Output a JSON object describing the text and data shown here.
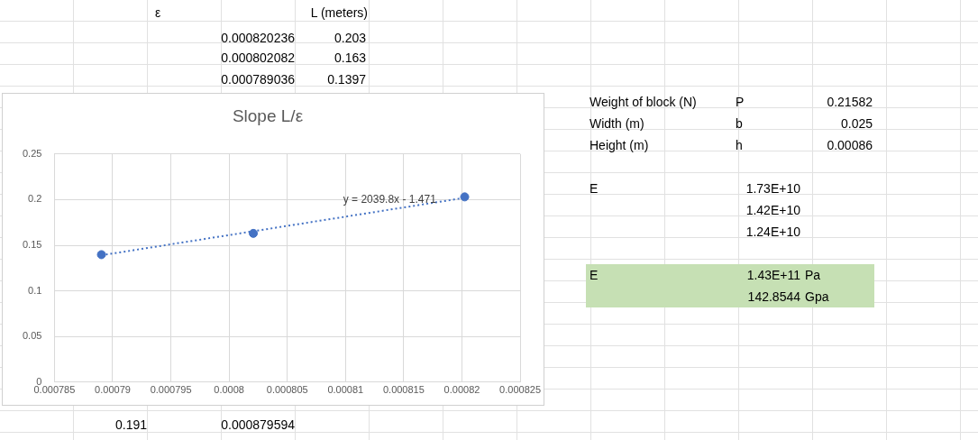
{
  "chart_data": [
    {
      "type": "scatter",
      "title": "Slope L/ε",
      "series": [
        {
          "type": "scatter",
          "color": "#4472c4",
          "marker": "circle",
          "x": [
            0.000820236,
            0.000802082,
            0.000789036
          ],
          "values": [
            0.203,
            0.163,
            0.1397
          ]
        },
        {
          "type": "line",
          "color": "#4472c4",
          "line_style": "dotted",
          "marker": "none",
          "x": [
            0.000789036,
            0.000820236
          ],
          "values": [
            0.139,
            0.202
          ]
        }
      ],
      "xlim": [
        0.000785,
        0.000825
      ],
      "xticks": [
        0.000785,
        0.00079,
        0.000795,
        0.0008,
        0.000805,
        0.00081,
        0.000815,
        0.00082,
        0.000825
      ],
      "ylim": [
        0,
        0.25
      ],
      "yticks": [
        0,
        0.05,
        0.1,
        0.15,
        0.2,
        0.25
      ],
      "grid": true,
      "legend": false,
      "annotations": [
        "y = 2039.8x - 1.471"
      ]
    },
    {
      "type": "other",
      "annotations": [
        "ε",
        "L (meters)",
        "0.000820236",
        "0.203",
        "0.000802082",
        "0.163",
        "0.000789036",
        "0.1397",
        "0.191",
        "0.000879594",
        "Weight of block (N)",
        "P",
        "0.21582",
        "Width (m)",
        "b",
        "0.025",
        "Height (m)",
        "h",
        "0.00086",
        "E",
        "1.73E+10",
        "1.42E+10",
        "1.24E+10",
        "E",
        "1.43E+11",
        "Pa",
        "142.8544",
        "Gpa"
      ]
    }
  ]
}
